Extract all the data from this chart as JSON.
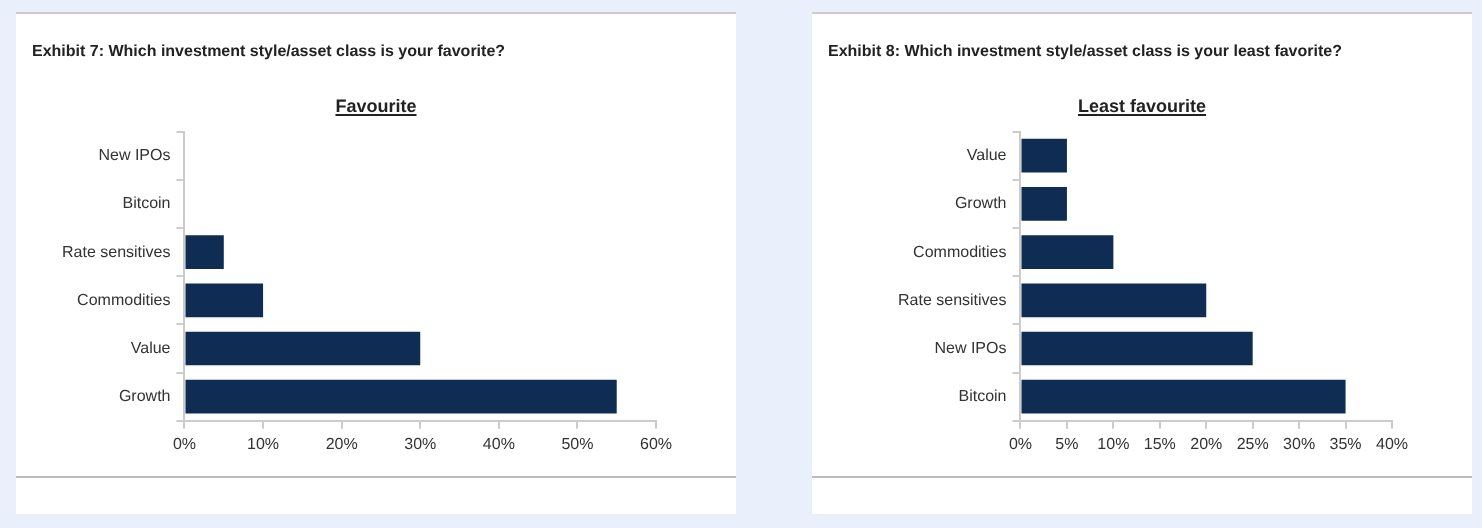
{
  "chart_data": [
    {
      "type": "bar",
      "orientation": "horizontal",
      "title": "Exhibit 7: Which investment style/asset class is your favorite?",
      "subtitle": "Favourite",
      "categories": [
        "New IPOs",
        "Bitcoin",
        "Rate sensitives",
        "Commodities",
        "Value",
        "Growth"
      ],
      "values": [
        0,
        0,
        5,
        10,
        30,
        55
      ],
      "color": "#0f2d52",
      "xlim": [
        0,
        60
      ],
      "xticks": [
        {
          "value": 0,
          "label": "0%"
        },
        {
          "value": 10,
          "label": "10%"
        },
        {
          "value": 20,
          "label": "20%"
        },
        {
          "value": 30,
          "label": "30%"
        },
        {
          "value": 40,
          "label": "40%"
        },
        {
          "value": 50,
          "label": "50%"
        },
        {
          "value": 60,
          "label": "60%"
        }
      ]
    },
    {
      "type": "bar",
      "orientation": "horizontal",
      "title": "Exhibit 8: Which investment style/asset class is your least favorite?",
      "subtitle": "Least favourite",
      "categories": [
        "Value",
        "Growth",
        "Commodities",
        "Rate sensitives",
        "New IPOs",
        "Bitcoin"
      ],
      "values": [
        5,
        5,
        10,
        20,
        25,
        35
      ],
      "color": "#0f2d52",
      "xlim": [
        0,
        40
      ],
      "xticks": [
        {
          "value": 0,
          "label": "0%"
        },
        {
          "value": 5,
          "label": "5%"
        },
        {
          "value": 10,
          "label": "10%"
        },
        {
          "value": 15,
          "label": "15%"
        },
        {
          "value": 20,
          "label": "20%"
        },
        {
          "value": 25,
          "label": "25%"
        },
        {
          "value": 30,
          "label": "30%"
        },
        {
          "value": 35,
          "label": "35%"
        },
        {
          "value": 40,
          "label": "40%"
        }
      ]
    }
  ]
}
